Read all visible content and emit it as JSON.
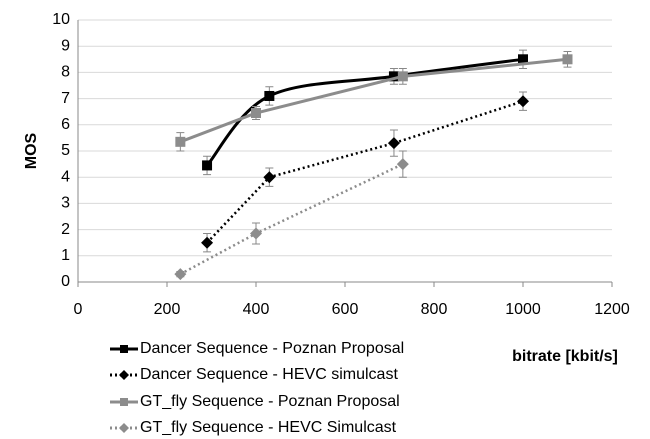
{
  "chart_data": {
    "type": "line",
    "xlabel": "bitrate [kbit/s]",
    "ylabel": "MOS",
    "xlim": [
      0,
      1200
    ],
    "xticks": [
      0,
      200,
      400,
      600,
      800,
      1000,
      1200
    ],
    "ylim": [
      0,
      10
    ],
    "yticks": [
      0,
      1,
      2,
      3,
      4,
      5,
      6,
      7,
      8,
      9,
      10
    ],
    "grid": true,
    "legend": "bottom-left",
    "series": [
      {
        "name": "Dancer Sequence - Poznan Proposal",
        "color": "#000000",
        "dash": "solid",
        "marker": "square",
        "smooth": true,
        "x": [
          290,
          430,
          710,
          1000
        ],
        "values": [
          4.45,
          7.1,
          7.85,
          8.5
        ],
        "errors": [
          0.35,
          0.35,
          0.3,
          0.35
        ]
      },
      {
        "name": "Dancer Sequence - HEVC simulcast",
        "color": "#000000",
        "dash": "dotted",
        "marker": "diamond",
        "smooth": false,
        "x": [
          290,
          430,
          710,
          1000
        ],
        "values": [
          1.5,
          4.0,
          5.3,
          6.9
        ],
        "errors": [
          0.35,
          0.35,
          0.5,
          0.35
        ]
      },
      {
        "name": "GT_fly Sequence - Poznan Proposal",
        "color": "#8c8c8c",
        "dash": "solid",
        "marker": "square",
        "smooth": false,
        "x": [
          230,
          400,
          730,
          1100
        ],
        "values": [
          5.35,
          6.45,
          7.85,
          8.5
        ],
        "errors": [
          0.35,
          0.25,
          0.3,
          0.3
        ]
      },
      {
        "name": "GT_fly Sequence - HEVC Simulcast",
        "color": "#8c8c8c",
        "dash": "dotted",
        "marker": "diamond",
        "smooth": false,
        "x": [
          230,
          400,
          730
        ],
        "values": [
          0.3,
          1.85,
          4.5
        ],
        "errors": [
          0.1,
          0.4,
          0.5
        ]
      }
    ]
  }
}
